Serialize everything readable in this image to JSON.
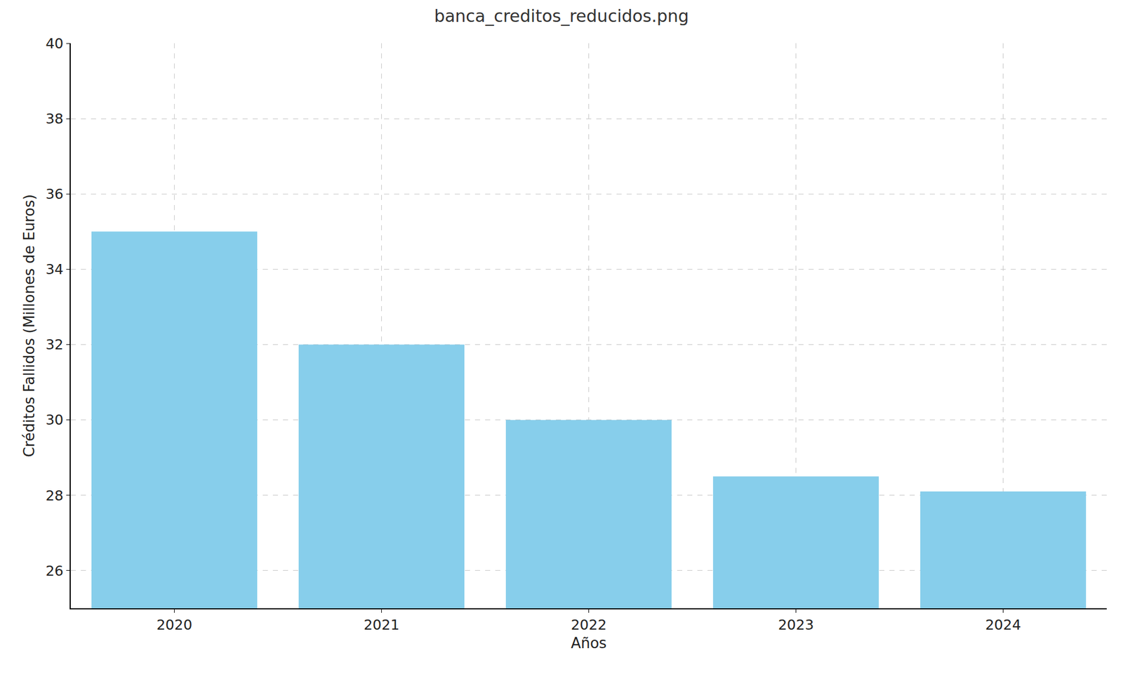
{
  "chart_data": {
    "type": "bar",
    "title": "banca_creditos_reducidos.png",
    "x_label": "Años",
    "y_label": "Créditos Fallidos (Millones de Euros)",
    "categories": [
      "2020",
      "2021",
      "2022",
      "2023",
      "2024"
    ],
    "values": [
      35,
      32,
      30,
      28.5,
      28.1
    ],
    "color": "#87ceeb",
    "ylim": [
      25,
      40
    ],
    "yticks": [
      26,
      28,
      30,
      32,
      34,
      36,
      38,
      40
    ],
    "grid": true
  }
}
